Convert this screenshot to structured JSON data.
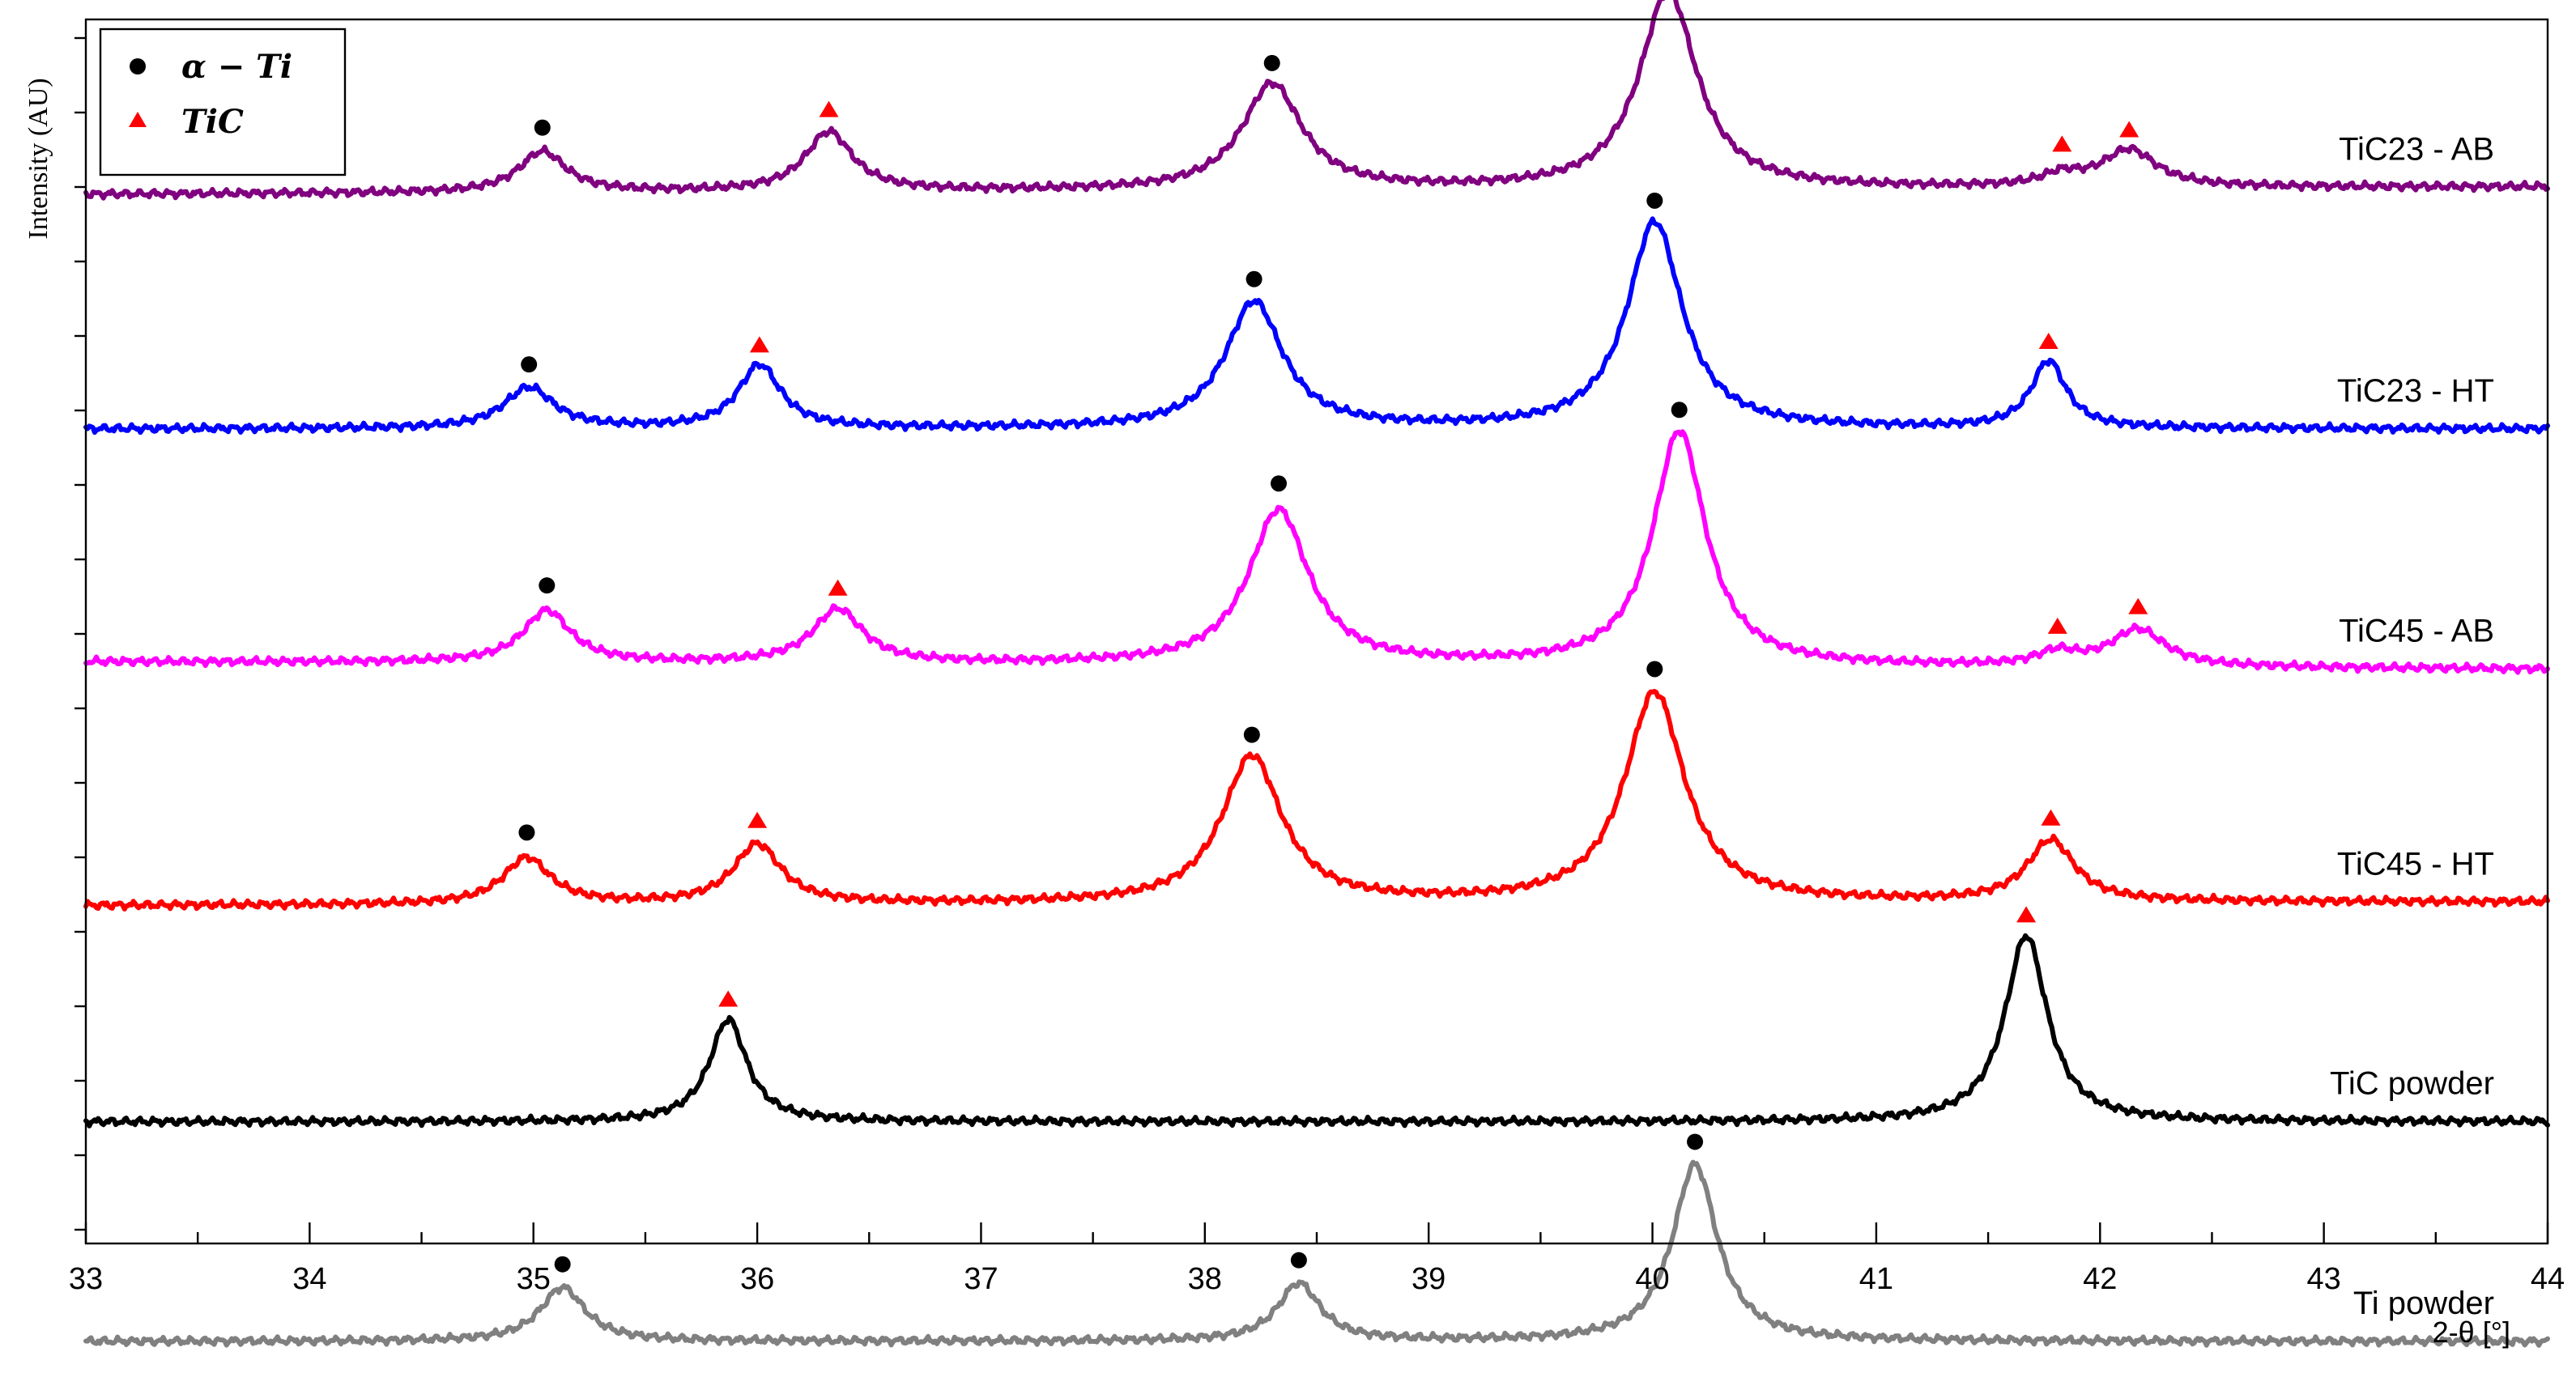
{
  "chart_data": {
    "type": "line",
    "title": "",
    "xlabel": "2-θ [°]",
    "ylabel": "Intensity (AU)",
    "xlim": [
      33,
      44
    ],
    "xticks": [
      33,
      34,
      35,
      36,
      37,
      38,
      39,
      40,
      41,
      42,
      43,
      44
    ],
    "yticks_labeled": false,
    "legend": {
      "position": "top-left",
      "entries": [
        {
          "marker": "circle",
          "color": "#000000",
          "label": "α − Ti"
        },
        {
          "marker": "triangle",
          "color": "#ff0000",
          "label": "TiC"
        }
      ]
    },
    "series": [
      {
        "name": "TiC23 - AB",
        "color": "#800080",
        "baseline": 5.06,
        "slope": 0.04,
        "peaks": [
          {
            "x": 35.04,
            "h": 0.22,
            "w": 0.19,
            "marker": "circle"
          },
          {
            "x": 36.32,
            "h": 0.32,
            "w": 0.19,
            "marker": "triangle"
          },
          {
            "x": 38.3,
            "h": 0.57,
            "w": 0.24,
            "marker": "circle"
          },
          {
            "x": 40.07,
            "h": 1.06,
            "w": 0.23,
            "marker": "circle"
          },
          {
            "x": 41.83,
            "h": 0.06,
            "w": 0.16,
            "marker": "triangle"
          },
          {
            "x": 42.13,
            "h": 0.2,
            "w": 0.22,
            "marker": "triangle"
          }
        ]
      },
      {
        "name": "TiC23 - HT",
        "color": "#0000ff",
        "baseline": 3.8,
        "slope": 0.0,
        "peaks": [
          {
            "x": 34.98,
            "h": 0.22,
            "w": 0.2,
            "marker": "circle"
          },
          {
            "x": 36.01,
            "h": 0.34,
            "w": 0.17,
            "marker": "triangle"
          },
          {
            "x": 38.22,
            "h": 0.68,
            "w": 0.23,
            "marker": "circle"
          },
          {
            "x": 40.01,
            "h": 1.11,
            "w": 0.22,
            "marker": "circle"
          },
          {
            "x": 41.77,
            "h": 0.36,
            "w": 0.14,
            "marker": "triangle"
          }
        ]
      },
      {
        "name": "TiC45 - AB",
        "color": "#ff00ff",
        "baseline": 2.55,
        "slope": -0.04,
        "peaks": [
          {
            "x": 35.06,
            "h": 0.28,
            "w": 0.19,
            "marker": "circle"
          },
          {
            "x": 36.36,
            "h": 0.29,
            "w": 0.2,
            "marker": "triangle"
          },
          {
            "x": 38.33,
            "h": 0.83,
            "w": 0.24,
            "marker": "circle"
          },
          {
            "x": 40.12,
            "h": 1.26,
            "w": 0.21,
            "marker": "circle"
          },
          {
            "x": 41.81,
            "h": 0.07,
            "w": 0.16,
            "marker": "triangle"
          },
          {
            "x": 42.17,
            "h": 0.2,
            "w": 0.22,
            "marker": "triangle"
          }
        ]
      },
      {
        "name": "TiC45 - HT",
        "color": "#ff0000",
        "baseline": 1.24,
        "slope": 0.02,
        "peaks": [
          {
            "x": 34.97,
            "h": 0.25,
            "w": 0.19,
            "marker": "circle"
          },
          {
            "x": 36.0,
            "h": 0.32,
            "w": 0.19,
            "marker": "triangle"
          },
          {
            "x": 38.21,
            "h": 0.79,
            "w": 0.24,
            "marker": "circle"
          },
          {
            "x": 40.01,
            "h": 1.13,
            "w": 0.24,
            "marker": "circle"
          },
          {
            "x": 41.78,
            "h": 0.33,
            "w": 0.19,
            "marker": "triangle"
          }
        ]
      },
      {
        "name": "TiC powder",
        "color": "#000000",
        "baseline": 0.08,
        "slope": 0.0,
        "peaks": [
          {
            "x": 35.87,
            "h": 0.55,
            "w": 0.15,
            "marker": "triangle"
          },
          {
            "x": 41.67,
            "h": 1.0,
            "w": 0.17,
            "marker": "triangle"
          }
        ]
      },
      {
        "name": "Ti powder",
        "color": "#808080",
        "baseline": -1.1,
        "slope": 0.0,
        "peaks": [
          {
            "x": 35.13,
            "h": 0.29,
            "w": 0.18,
            "marker": "circle"
          },
          {
            "x": 38.42,
            "h": 0.31,
            "w": 0.17,
            "marker": "circle"
          },
          {
            "x": 40.19,
            "h": 0.95,
            "w": 0.18,
            "marker": "circle"
          }
        ]
      }
    ]
  }
}
